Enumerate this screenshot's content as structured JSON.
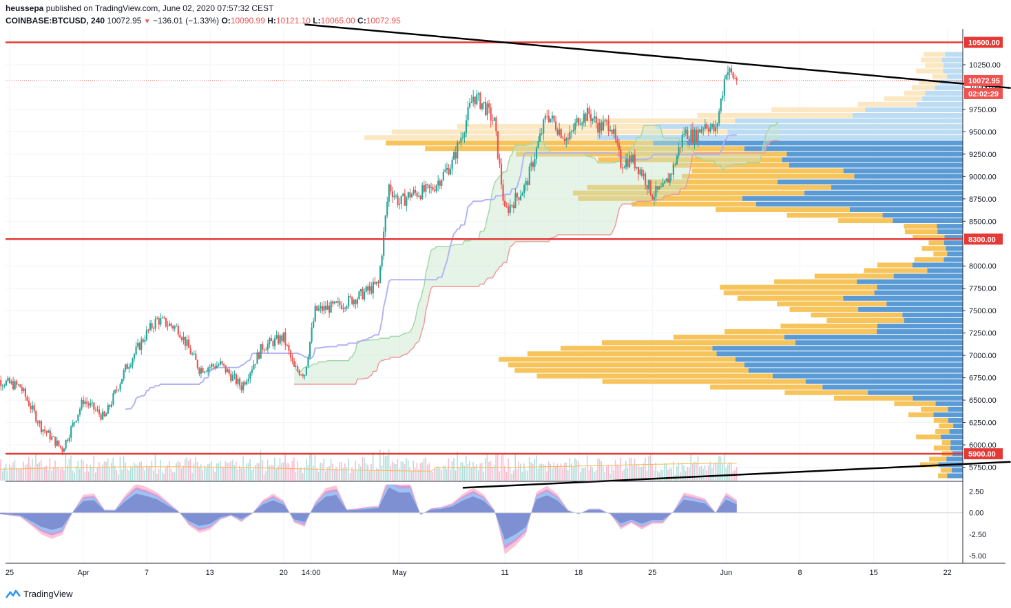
{
  "header": {
    "publisher": "heussepa",
    "published_text": "published on TradingView.com, June 02, 2020 07:57:32 CEST",
    "symbol": "COINBASE:BTCUSD",
    "interval": "240",
    "last": "10072.95",
    "change": "−136.01 (−1.33%)",
    "o_label": "O:",
    "o": "10090.99",
    "h_label": "H:",
    "h": "10121.10",
    "l_label": "L:",
    "l": "10065.00",
    "c_label": "C:",
    "c": "10072.95"
  },
  "footer": {
    "brand": "TradingView"
  },
  "colors": {
    "up": "#26a69a",
    "down": "#ef5350",
    "hline": "#e53935",
    "trend": "#000000",
    "vp_up": "#5b9bd5",
    "vp_down": "#f6c45a",
    "cloud": "#c8e6c9",
    "baseline": "#b3b3f5"
  },
  "chart_data": {
    "type": "candlestick",
    "price_axis": {
      "range": [
        5600,
        10650
      ],
      "ticks": [
        "10250.00",
        "10000.00",
        "9750.00",
        "9500.00",
        "9250.00",
        "9000.00",
        "8750.00",
        "8500.00",
        "8000.00",
        "7750.00",
        "7500.00",
        "7250.00",
        "7000.00",
        "6750.00",
        "6500.00",
        "6250.00",
        "6000.00",
        "5750.00"
      ]
    },
    "price_labels": [
      {
        "price": 10500,
        "text": "10500.00",
        "kind": "level"
      },
      {
        "price": 10072.95,
        "text": "10072.95",
        "kind": "last"
      },
      {
        "price": 9960,
        "text": "02:02:29",
        "kind": "timer"
      },
      {
        "price": 8300,
        "text": "8300.00",
        "kind": "level"
      },
      {
        "price": 5900,
        "text": "5900.00",
        "kind": "level"
      }
    ],
    "time_axis": {
      "labels": [
        "25",
        "Apr",
        "7",
        "13",
        "20",
        "14:00",
        "May",
        "11",
        "18",
        "25",
        "Jun",
        "8",
        "15",
        "22"
      ]
    },
    "horizontal_levels": [
      10500,
      8300,
      5900
    ],
    "trendlines": [
      {
        "from": [
          "2020-04-22",
          10700
        ],
        "to": [
          "2020-06-28",
          9990
        ]
      },
      {
        "from": [
          "2020-05-07",
          5520
        ],
        "to": [
          "2020-06-28",
          5810
        ]
      }
    ],
    "close_points": [
      [
        "2020-03-23",
        6750
      ],
      [
        "2020-03-26",
        6650
      ],
      [
        "2020-03-28",
        6200
      ],
      [
        "2020-03-30",
        5950
      ],
      [
        "2020-04-01",
        6500
      ],
      [
        "2020-04-03",
        6300
      ],
      [
        "2020-04-05",
        6850
      ],
      [
        "2020-04-07",
        7250
      ],
      [
        "2020-04-08",
        7400
      ],
      [
        "2020-04-10",
        7300
      ],
      [
        "2020-04-12",
        6850
      ],
      [
        "2020-04-14",
        6900
      ],
      [
        "2020-04-16",
        6650
      ],
      [
        "2020-04-18",
        7100
      ],
      [
        "2020-04-20",
        7200
      ],
      [
        "2020-04-21",
        6850
      ],
      [
        "2020-04-22",
        6800
      ],
      [
        "2020-04-23",
        7500
      ],
      [
        "2020-04-25",
        7550
      ],
      [
        "2020-04-27",
        7650
      ],
      [
        "2020-04-29",
        7800
      ],
      [
        "2020-04-30",
        8900
      ],
      [
        "2020-05-01",
        8700
      ],
      [
        "2020-05-02",
        8800
      ],
      [
        "2020-05-04",
        8850
      ],
      [
        "2020-05-06",
        9150
      ],
      [
        "2020-05-07",
        9500
      ],
      [
        "2020-05-08",
        9900
      ],
      [
        "2020-05-09",
        9800
      ],
      [
        "2020-05-10",
        9600
      ],
      [
        "2020-05-11",
        8600
      ],
      [
        "2020-05-12",
        8750
      ],
      [
        "2020-05-13",
        8900
      ],
      [
        "2020-05-14",
        9300
      ],
      [
        "2020-05-15",
        9700
      ],
      [
        "2020-05-17",
        9400
      ],
      [
        "2020-05-18",
        9650
      ],
      [
        "2020-05-19",
        9700
      ],
      [
        "2020-05-20",
        9550
      ],
      [
        "2020-05-21",
        9600
      ],
      [
        "2020-05-22",
        9150
      ],
      [
        "2020-05-23",
        9200
      ],
      [
        "2020-05-24",
        9050
      ],
      [
        "2020-05-25",
        8800
      ],
      [
        "2020-05-26",
        8850
      ],
      [
        "2020-05-27",
        9100
      ],
      [
        "2020-05-28",
        9500
      ],
      [
        "2020-05-29",
        9450
      ],
      [
        "2020-05-30",
        9600
      ],
      [
        "2020-05-31",
        9500
      ],
      [
        "2020-06-01",
        10200
      ],
      [
        "2020-06-02",
        10073
      ]
    ],
    "oscillator": {
      "range": [
        -5.9,
        3.6
      ],
      "ticks": [
        "2.50",
        "0.00",
        "-2.50",
        "-5.00"
      ]
    }
  }
}
